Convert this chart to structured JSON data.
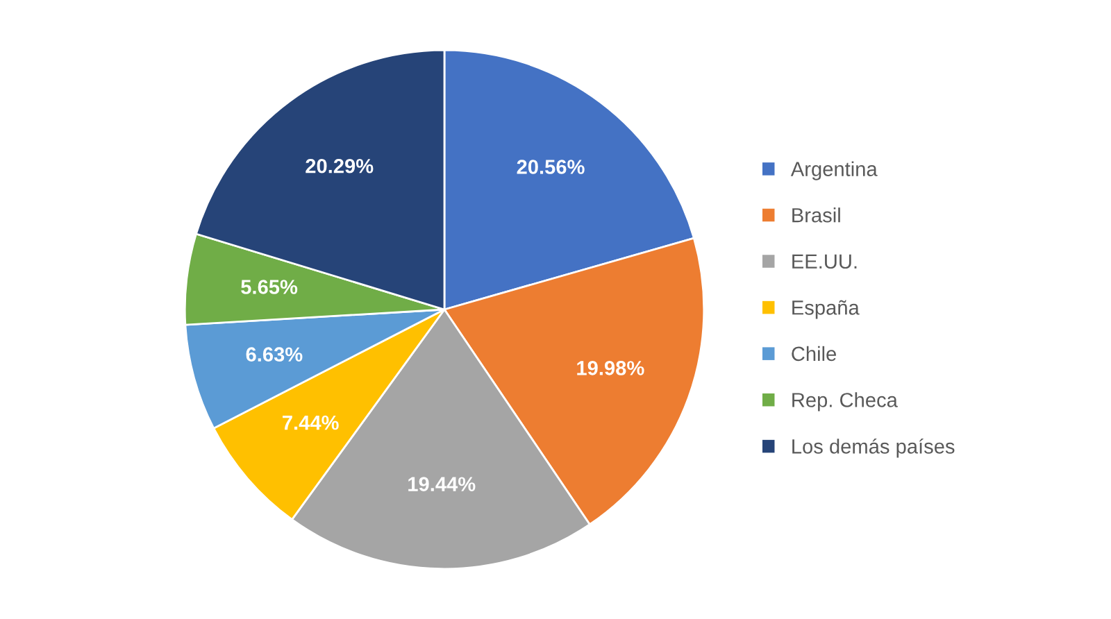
{
  "chart_data": {
    "type": "pie",
    "categories": [
      "Argentina",
      "Brasil",
      "EE.UU.",
      "España",
      "Chile",
      "Rep. Checa",
      "Los demás países"
    ],
    "values": [
      20.56,
      19.98,
      19.44,
      7.44,
      6.63,
      5.65,
      20.29
    ],
    "value_labels": [
      "20.56%",
      "19.98%",
      "19.44%",
      "7.44%",
      "6.63%",
      "5.65%",
      "20.29%"
    ],
    "colors": [
      "#4472c4",
      "#ed7d31",
      "#a5a5a5",
      "#ffc000",
      "#5b9bd5",
      "#70ad47",
      "#264478"
    ],
    "legend": "right"
  }
}
